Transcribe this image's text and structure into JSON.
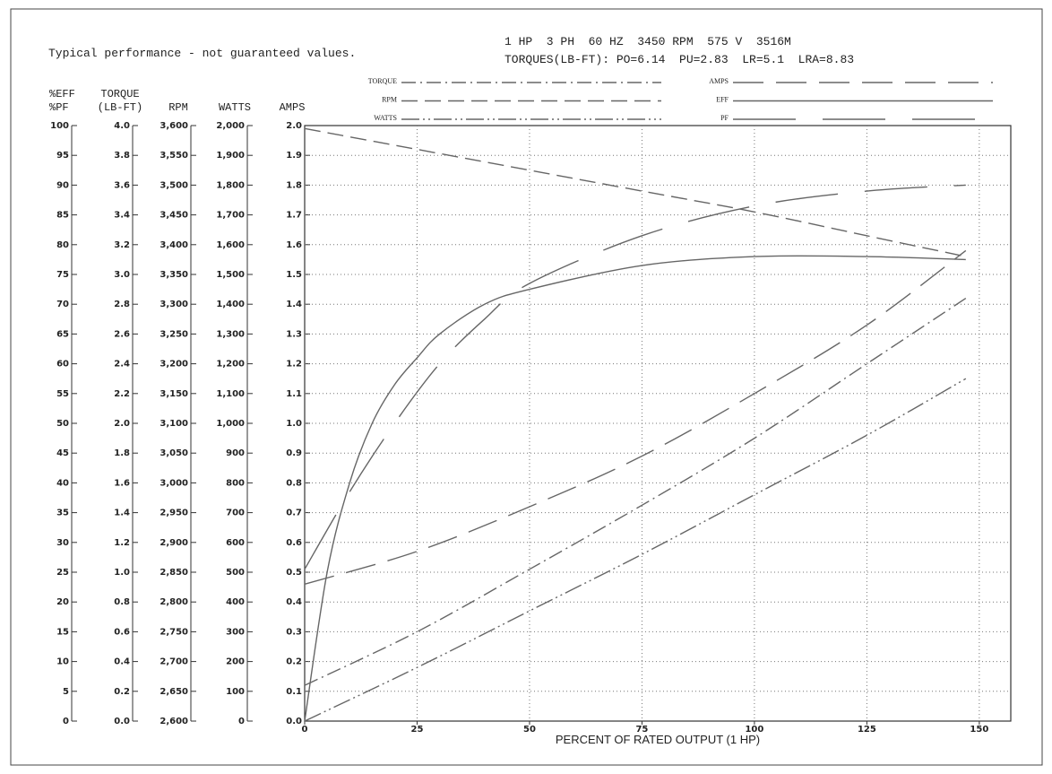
{
  "chart_data": {
    "type": "line",
    "note": "Typical performance - not guaranteed values.",
    "title": "1 HP  3 PH  60 HZ  3450 RPM  575 V  3516M",
    "subtitle": "TORQUES(LB-FT): PO=6.14  PU=2.83  LR=5.1  LRA=8.83",
    "xlabel": "PERCENT OF RATED OUTPUT (1 HP)",
    "xlim": [
      0,
      157
    ],
    "xticks": [
      0,
      25,
      50,
      75,
      100,
      125,
      150
    ],
    "grid": true,
    "axes": {
      "eff": {
        "label": [
          "%EFF",
          "%PF"
        ],
        "lim": [
          0,
          100
        ],
        "ticks": [
          0,
          5,
          10,
          15,
          20,
          25,
          30,
          35,
          40,
          45,
          50,
          55,
          60,
          65,
          70,
          75,
          80,
          85,
          90,
          95,
          100
        ]
      },
      "torque": {
        "label": [
          "TORQUE",
          "(LB-FT)"
        ],
        "lim": [
          0,
          4
        ],
        "ticks": [
          {
            "value": 0,
            "label": "0.0"
          },
          0.2,
          0.4,
          0.6,
          0.8,
          {
            "value": 1,
            "label": "1.0"
          },
          1.2,
          1.4,
          1.6,
          1.8,
          {
            "value": 2,
            "label": "2.0"
          },
          2.2,
          2.4,
          2.6,
          2.8,
          {
            "value": 3,
            "label": "3.0"
          },
          3.2,
          3.4,
          3.6,
          3.8,
          {
            "value": 4,
            "label": "4.0"
          }
        ]
      },
      "rpm": {
        "label": [
          "RPM"
        ],
        "lim": [
          2600,
          3600
        ],
        "ticks": [
          {
            "value": 2600,
            "label": "2,600"
          },
          {
            "value": 2650,
            "label": "2,650"
          },
          {
            "value": 2700,
            "label": "2,700"
          },
          {
            "value": 2750,
            "label": "2,750"
          },
          {
            "value": 2800,
            "label": "2,800"
          },
          {
            "value": 2850,
            "label": "2,850"
          },
          {
            "value": 2900,
            "label": "2,900"
          },
          {
            "value": 2950,
            "label": "2,950"
          },
          {
            "value": 3000,
            "label": "3,000"
          },
          {
            "value": 3050,
            "label": "3,050"
          },
          {
            "value": 3100,
            "label": "3,100"
          },
          {
            "value": 3150,
            "label": "3,150"
          },
          {
            "value": 3200,
            "label": "3,200"
          },
          {
            "value": 3250,
            "label": "3,250"
          },
          {
            "value": 3300,
            "label": "3,300"
          },
          {
            "value": 3350,
            "label": "3,350"
          },
          {
            "value": 3400,
            "label": "3,400"
          },
          {
            "value": 3450,
            "label": "3,450"
          },
          {
            "value": 3500,
            "label": "3,500"
          },
          {
            "value": 3550,
            "label": "3,550"
          },
          {
            "value": 3600,
            "label": "3,600"
          }
        ]
      },
      "watts": {
        "label": [
          "WATTS"
        ],
        "lim": [
          0,
          2000
        ],
        "ticks": [
          0,
          100,
          200,
          300,
          400,
          500,
          600,
          700,
          800,
          900,
          {
            "value": 1000,
            "label": "1,000"
          },
          {
            "value": 1100,
            "label": "1,100"
          },
          {
            "value": 1200,
            "label": "1,200"
          },
          {
            "value": 1300,
            "label": "1,300"
          },
          {
            "value": 1400,
            "label": "1,400"
          },
          {
            "value": 1500,
            "label": "1,500"
          },
          {
            "value": 1600,
            "label": "1,600"
          },
          {
            "value": 1700,
            "label": "1,700"
          },
          {
            "value": 1800,
            "label": "1,800"
          },
          {
            "value": 1900,
            "label": "1,900"
          },
          {
            "value": 2000,
            "label": "2,000"
          }
        ]
      },
      "amps": {
        "label": [
          "AMPS"
        ],
        "lim": [
          0,
          2
        ],
        "ticks": [
          {
            "value": 0,
            "label": "0.0"
          },
          0.1,
          0.2,
          0.3,
          0.4,
          0.5,
          0.6,
          0.7,
          0.8,
          0.9,
          {
            "value": 1,
            "label": "1.0"
          },
          1.1,
          1.2,
          1.3,
          1.4,
          1.5,
          1.6,
          1.7,
          1.8,
          1.9,
          {
            "value": 2,
            "label": "2.0"
          }
        ]
      }
    },
    "series": [
      {
        "name": "TORQUE",
        "axis": "torque",
        "color": "#666666",
        "dash": "16 5 2 5",
        "x": [
          0,
          25,
          50,
          75,
          100,
          125,
          147
        ],
        "values": [
          0.24,
          0.6,
          1.02,
          1.45,
          1.9,
          2.4,
          2.84
        ]
      },
      {
        "name": "RPM",
        "axis": "rpm",
        "color": "#666666",
        "dash": "18 8",
        "x": [
          0,
          25,
          50,
          75,
          100,
          125,
          147
        ],
        "values": [
          3595,
          3560,
          3525,
          3490,
          3455,
          3415,
          3380
        ]
      },
      {
        "name": "WATTS",
        "axis": "watts",
        "color": "#666666",
        "dash": "20 4 2 4 2 4",
        "x": [
          0,
          25,
          50,
          75,
          100,
          125,
          147
        ],
        "values": [
          0,
          180,
          370,
          560,
          760,
          960,
          1150
        ]
      },
      {
        "name": "AMPS",
        "axis": "amps",
        "color": "#666666",
        "dash": "34 14",
        "x": [
          0,
          25,
          50,
          75,
          100,
          125,
          147
        ],
        "values": [
          0.46,
          0.57,
          0.72,
          0.89,
          1.1,
          1.33,
          1.58
        ]
      },
      {
        "name": "EFF",
        "axis": "eff",
        "color": "#666666",
        "dash": "none",
        "x": [
          0,
          5,
          10,
          15,
          20,
          25,
          30,
          40,
          50,
          75,
          100,
          125,
          147
        ],
        "values": [
          0,
          25,
          40,
          50,
          56.5,
          61,
          65,
          70,
          72.5,
          76.5,
          78,
          78,
          77.5
        ]
      },
      {
        "name": "PF",
        "axis": "eff",
        "color": "#666666",
        "dash": "70 30",
        "x": [
          0,
          10,
          20,
          30,
          40,
          50,
          75,
          100,
          125,
          147
        ],
        "values": [
          25.5,
          38.5,
          50,
          60,
          67.5,
          73.5,
          81.5,
          86.5,
          89,
          90
        ]
      }
    ]
  }
}
